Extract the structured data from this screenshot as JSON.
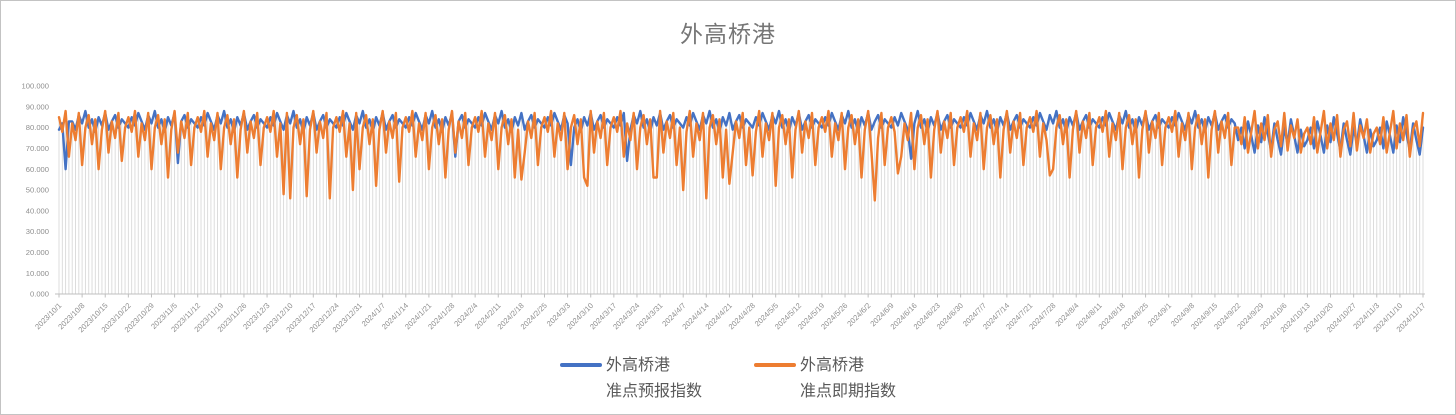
{
  "title": "外高桥港",
  "chart_data": {
    "type": "line",
    "title": "外高桥港",
    "ylim": [
      0,
      100
    ],
    "y_ticks": [
      "0.000",
      "10.000",
      "20.000",
      "30.000",
      "40.000",
      "50.000",
      "60.000",
      "70.000",
      "80.000",
      "90.000",
      "100.000"
    ],
    "x_label_step": 7,
    "x_labels": [
      "2023/10/1",
      "2023/10/8",
      "2023/10/15",
      "2023/10/22",
      "2023/10/29",
      "2023/11/5",
      "2023/11/12",
      "2023/11/19",
      "2023/11/26",
      "2023/12/3",
      "2023/12/10",
      "2023/12/17",
      "2023/12/24",
      "2023/12/31",
      "2024/1/7",
      "2024/1/14",
      "2024/1/21",
      "2024/1/28",
      "2024/2/4",
      "2024/2/11",
      "2024/2/18",
      "2024/2/25",
      "2024/3/3",
      "2024/3/10",
      "2024/3/17",
      "2024/3/24",
      "2024/3/31",
      "2024/4/7",
      "2024/4/14",
      "2024/4/21",
      "2024/4/28",
      "2024/5/5",
      "2024/5/12",
      "2024/5/19",
      "2024/5/26",
      "2024/6/2",
      "2024/6/9",
      "2024/6/16",
      "2024/6/23",
      "2024/6/30",
      "2024/7/7",
      "2024/7/14",
      "2024/7/21",
      "2024/7/28",
      "2024/8/4",
      "2024/8/11",
      "2024/8/18",
      "2024/8/25",
      "2024/9/1",
      "2024/9/8",
      "2024/9/15",
      "2024/9/22",
      "2024/9/29",
      "2024/10/6",
      "2024/10/13",
      "2024/10/20",
      "2024/10/27",
      "2024/11/3",
      "2024/11/10",
      "2024/11/17"
    ],
    "grid": "drop-lines",
    "legend_position": "bottom",
    "colors": {
      "drop_line": "#d9d9d9",
      "axis": "#bfbfbf",
      "tick_label": "#8e8e8e",
      "title": "#767676"
    },
    "series": [
      {
        "name": "外高桥港准点预报指数",
        "legend_line1": "外高桥港",
        "legend_line2": "准点预报指数",
        "color": "#4472C4",
        "values": [
          79,
          82,
          60,
          83,
          83,
          79,
          86,
          82,
          88,
          80,
          84,
          78,
          85,
          81,
          87,
          79,
          83,
          86,
          80,
          84,
          82,
          80,
          85,
          81,
          87,
          83,
          79,
          86,
          82,
          88,
          80,
          84,
          78,
          85,
          81,
          87,
          63,
          83,
          86,
          80,
          84,
          82,
          80,
          85,
          81,
          87,
          83,
          79,
          86,
          82,
          88,
          80,
          84,
          78,
          85,
          81,
          87,
          79,
          83,
          86,
          80,
          84,
          82,
          80,
          85,
          81,
          87,
          83,
          79,
          86,
          82,
          88,
          80,
          84,
          78,
          85,
          81,
          87,
          79,
          83,
          86,
          80,
          84,
          82,
          80,
          85,
          81,
          87,
          83,
          79,
          86,
          82,
          88,
          80,
          84,
          78,
          85,
          81,
          87,
          79,
          83,
          86,
          80,
          84,
          82,
          80,
          85,
          81,
          87,
          83,
          79,
          86,
          82,
          88,
          80,
          84,
          78,
          85,
          81,
          87,
          66,
          83,
          86,
          80,
          84,
          82,
          80,
          85,
          81,
          87,
          83,
          79,
          86,
          82,
          88,
          80,
          84,
          78,
          85,
          81,
          87,
          79,
          83,
          86,
          80,
          84,
          82,
          80,
          85,
          81,
          87,
          83,
          79,
          86,
          82,
          62,
          80,
          84,
          78,
          85,
          81,
          87,
          79,
          83,
          86,
          80,
          84,
          82,
          80,
          85,
          81,
          87,
          64,
          79,
          86,
          82,
          88,
          80,
          84,
          78,
          85,
          81,
          87,
          79,
          83,
          86,
          80,
          84,
          82,
          80,
          85,
          81,
          87,
          83,
          79,
          86,
          82,
          88,
          80,
          84,
          78,
          85,
          81,
          87,
          79,
          83,
          86,
          80,
          84,
          82,
          80,
          85,
          81,
          87,
          83,
          79,
          86,
          82,
          88,
          80,
          84,
          78,
          85,
          81,
          87,
          79,
          83,
          86,
          80,
          84,
          82,
          80,
          85,
          81,
          87,
          83,
          79,
          86,
          82,
          88,
          80,
          84,
          78,
          85,
          81,
          87,
          79,
          83,
          86,
          80,
          84,
          82,
          80,
          85,
          81,
          87,
          83,
          79,
          65,
          82,
          88,
          80,
          84,
          78,
          85,
          81,
          87,
          79,
          83,
          86,
          80,
          84,
          82,
          80,
          85,
          81,
          87,
          83,
          79,
          86,
          82,
          88,
          80,
          84,
          78,
          85,
          81,
          87,
          79,
          83,
          86,
          80,
          84,
          82,
          80,
          85,
          81,
          87,
          83,
          79,
          86,
          82,
          88,
          80,
          84,
          78,
          85,
          81,
          87,
          79,
          83,
          86,
          80,
          84,
          82,
          80,
          85,
          81,
          87,
          83,
          79,
          86,
          82,
          88,
          80,
          84,
          78,
          85,
          81,
          87,
          79,
          83,
          86,
          80,
          84,
          82,
          80,
          85,
          81,
          87,
          83,
          79,
          86,
          82,
          88,
          80,
          84,
          78,
          85,
          81,
          87,
          79,
          83,
          86,
          80,
          84,
          82,
          74,
          80,
          70,
          83,
          76,
          68,
          81,
          73,
          85,
          77,
          69,
          82,
          74,
          67,
          80,
          72,
          84,
          76,
          68,
          79,
          71,
          74,
          80,
          70,
          83,
          76,
          68,
          81,
          73,
          85,
          77,
          69,
          82,
          74,
          67,
          80,
          72,
          84,
          76,
          68,
          79,
          71,
          74,
          80,
          70,
          83,
          76,
          68,
          81,
          73,
          85,
          77,
          69,
          82,
          74,
          67,
          80
        ]
      },
      {
        "name": "外高桥港准点即期指数",
        "legend_line1": "外高桥港",
        "legend_line2": "准点即期指数",
        "color": "#ED7D31",
        "values": [
          85,
          78,
          88,
          66,
          82,
          74,
          87,
          62,
          80,
          86,
          72,
          84,
          60,
          79,
          88,
          68,
          83,
          75,
          87,
          64,
          80,
          85,
          78,
          88,
          66,
          82,
          74,
          87,
          60,
          80,
          86,
          72,
          84,
          56,
          79,
          88,
          68,
          83,
          75,
          87,
          62,
          80,
          85,
          78,
          88,
          66,
          82,
          74,
          87,
          60,
          80,
          86,
          72,
          84,
          56,
          79,
          88,
          68,
          83,
          75,
          87,
          62,
          80,
          85,
          78,
          88,
          66,
          82,
          48,
          87,
          46,
          80,
          86,
          72,
          84,
          47,
          79,
          88,
          68,
          83,
          75,
          87,
          46,
          80,
          85,
          78,
          88,
          66,
          82,
          50,
          87,
          60,
          80,
          86,
          72,
          84,
          52,
          79,
          88,
          68,
          83,
          75,
          87,
          54,
          80,
          85,
          78,
          88,
          66,
          82,
          74,
          87,
          60,
          80,
          86,
          72,
          84,
          56,
          79,
          88,
          68,
          83,
          75,
          87,
          62,
          80,
          85,
          78,
          88,
          66,
          82,
          74,
          87,
          60,
          80,
          86,
          72,
          84,
          56,
          79,
          55,
          68,
          83,
          75,
          87,
          62,
          80,
          85,
          78,
          88,
          66,
          82,
          74,
          87,
          60,
          80,
          86,
          72,
          84,
          56,
          52,
          88,
          68,
          83,
          75,
          87,
          62,
          80,
          85,
          78,
          88,
          66,
          82,
          74,
          87,
          60,
          80,
          86,
          72,
          84,
          56,
          56,
          88,
          68,
          83,
          75,
          87,
          62,
          80,
          50,
          78,
          88,
          66,
          82,
          74,
          87,
          46,
          80,
          86,
          72,
          84,
          56,
          79,
          53,
          68,
          83,
          75,
          87,
          62,
          80,
          57,
          78,
          88,
          66,
          82,
          74,
          87,
          52,
          80,
          86,
          72,
          84,
          56,
          79,
          88,
          68,
          83,
          75,
          87,
          62,
          80,
          85,
          78,
          88,
          66,
          82,
          74,
          87,
          60,
          80,
          86,
          72,
          84,
          56,
          79,
          88,
          68,
          45,
          75,
          87,
          62,
          80,
          85,
          78,
          58,
          66,
          82,
          74,
          87,
          60,
          80,
          86,
          72,
          84,
          56,
          79,
          88,
          68,
          83,
          75,
          87,
          62,
          80,
          85,
          78,
          88,
          66,
          82,
          74,
          87,
          60,
          80,
          86,
          72,
          84,
          56,
          79,
          88,
          68,
          83,
          75,
          87,
          62,
          80,
          85,
          78,
          88,
          66,
          82,
          74,
          57,
          60,
          80,
          86,
          72,
          84,
          56,
          79,
          88,
          68,
          83,
          75,
          87,
          62,
          80,
          85,
          78,
          88,
          66,
          82,
          74,
          87,
          60,
          80,
          86,
          72,
          84,
          56,
          79,
          88,
          68,
          83,
          75,
          87,
          62,
          80,
          85,
          78,
          88,
          66,
          82,
          74,
          87,
          60,
          80,
          86,
          72,
          84,
          56,
          79,
          88,
          68,
          83,
          75,
          87,
          62,
          80,
          80,
          72,
          85,
          68,
          78,
          88,
          70,
          82,
          74,
          86,
          66,
          79,
          83,
          71,
          87,
          69,
          81,
          75,
          84,
          68,
          77,
          80,
          72,
          85,
          68,
          78,
          88,
          70,
          82,
          74,
          86,
          66,
          79,
          83,
          71,
          87,
          69,
          81,
          75,
          84,
          68,
          77,
          80,
          72,
          85,
          68,
          78,
          88,
          70,
          82,
          74,
          86,
          66,
          79,
          83,
          71,
          87
        ]
      }
    ]
  },
  "legend": {
    "items": [
      {
        "line1": "外高桥港",
        "line2": "准点预报指数"
      },
      {
        "line1": "外高桥港",
        "line2": "准点即期指数"
      }
    ]
  }
}
